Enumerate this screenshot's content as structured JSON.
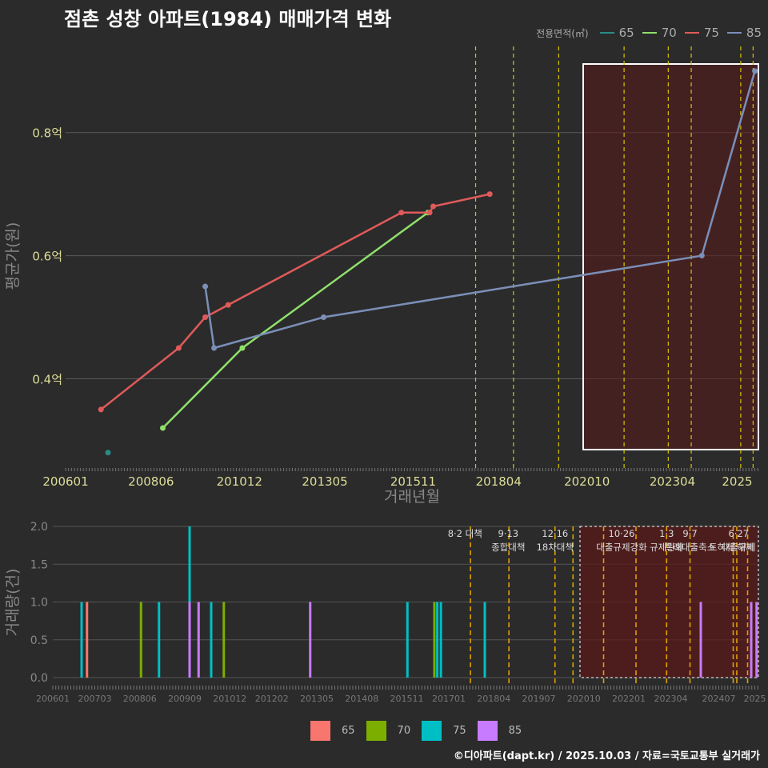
{
  "title": "점촌 성창 아파트(1984) 매매가격 변화",
  "footer": "©디아파트(dapt.kr) / 2025.10.03 / 자료=국토교통부 실거래가",
  "legend_top": {
    "title": "전용면적(㎡)",
    "items": [
      {
        "label": "65",
        "color": "#2a8b86"
      },
      {
        "label": "70",
        "color": "#8fe06a"
      },
      {
        "label": "75",
        "color": "#e05a5a"
      },
      {
        "label": "85",
        "color": "#7b8fb8"
      }
    ]
  },
  "legend_bottom": {
    "items": [
      {
        "label": "65",
        "color": "#f8766d"
      },
      {
        "label": "70",
        "color": "#7cae00"
      },
      {
        "label": "75",
        "color": "#00bfc4"
      },
      {
        "label": "85",
        "color": "#c77cff"
      }
    ]
  },
  "chart_data": [
    {
      "type": "line",
      "title": "점촌 성창 아파트(1984) 매매가격 변화",
      "xlabel": "거래년월",
      "ylabel": "평균가(원)",
      "xlim": [
        2006.0,
        2025.6
      ],
      "ylim": [
        0.255,
        0.94
      ],
      "yticks": [
        {
          "v": 0.4,
          "label": "0.4억"
        },
        {
          "v": 0.6,
          "label": "0.6억"
        },
        {
          "v": 0.8,
          "label": "0.8억"
        }
      ],
      "xticks": [
        {
          "v": 2006.0,
          "label": "200601"
        },
        {
          "v": 2008.417,
          "label": "200806"
        },
        {
          "v": 2010.917,
          "label": "201012"
        },
        {
          "v": 2013.333,
          "label": "201305"
        },
        {
          "v": 2015.833,
          "label": "201511"
        },
        {
          "v": 2018.25,
          "label": "201804"
        },
        {
          "v": 2020.75,
          "label": "202010"
        },
        {
          "v": 2023.167,
          "label": "202304"
        },
        {
          "v": 2025.0,
          "label": "2025"
        }
      ],
      "series": [
        {
          "name": "65",
          "points": [
            [
              2007.2,
              0.28
            ]
          ]
        },
        {
          "name": "70",
          "points": [
            [
              2008.75,
              0.32
            ],
            [
              2011.0,
              0.45
            ],
            [
              2016.25,
              0.67
            ]
          ]
        },
        {
          "name": "75",
          "points": [
            [
              2007.0,
              0.35
            ],
            [
              2009.2,
              0.45
            ],
            [
              2009.95,
              0.5
            ],
            [
              2010.6,
              0.52
            ],
            [
              2015.5,
              0.67
            ],
            [
              2016.3,
              0.67
            ],
            [
              2016.4,
              0.68
            ],
            [
              2018.0,
              0.7
            ]
          ]
        },
        {
          "name": "85",
          "points": [
            [
              2009.95,
              0.55
            ],
            [
              2010.2,
              0.45
            ],
            [
              2013.3,
              0.5
            ],
            [
              2024.0,
              0.6
            ],
            [
              2025.5,
              0.9
            ]
          ]
        }
      ],
      "policy_lines": [
        2017.6,
        2018.67,
        2019.95,
        2021.8,
        2023.05,
        2023.7,
        2025.1,
        2025.45
      ],
      "highlight": {
        "from": 2020.8,
        "to": 2025.6
      }
    },
    {
      "type": "bar",
      "ylabel": "거래량(건)",
      "xlim": [
        2006.0,
        2025.6
      ],
      "ylim": [
        0,
        2.0
      ],
      "yticks": [
        {
          "v": 0.0,
          "label": "0.0"
        },
        {
          "v": 0.5,
          "label": "0.5"
        },
        {
          "v": 1.0,
          "label": "1.0"
        },
        {
          "v": 1.5,
          "label": "1.5"
        },
        {
          "v": 2.0,
          "label": "2.0"
        }
      ],
      "xticks": [
        {
          "v": 2006.0,
          "label": "200601"
        },
        {
          "v": 2007.167,
          "label": "200703"
        },
        {
          "v": 2008.417,
          "label": "200806"
        },
        {
          "v": 2009.667,
          "label": "200909"
        },
        {
          "v": 2010.917,
          "label": "201012"
        },
        {
          "v": 2012.083,
          "label": "201202"
        },
        {
          "v": 2013.333,
          "label": "201305"
        },
        {
          "v": 2014.583,
          "label": "201408"
        },
        {
          "v": 2015.833,
          "label": "201511"
        },
        {
          "v": 2017.0,
          "label": "201701"
        },
        {
          "v": 2018.25,
          "label": "201804"
        },
        {
          "v": 2019.5,
          "label": "201907"
        },
        {
          "v": 2020.75,
          "label": "202010"
        },
        {
          "v": 2022.0,
          "label": "202201"
        },
        {
          "v": 2023.167,
          "label": "202304"
        },
        {
          "v": 2024.5,
          "label": "202407"
        },
        {
          "v": 2025.5,
          "label": "2025"
        }
      ],
      "bars": [
        {
          "x": 2006.8,
          "series": "75",
          "value": 1
        },
        {
          "x": 2006.95,
          "series": "65",
          "value": 1
        },
        {
          "x": 2008.45,
          "series": "70",
          "value": 1
        },
        {
          "x": 2008.95,
          "series": "75",
          "value": 1
        },
        {
          "x": 2009.8,
          "series": "75",
          "value": 2
        },
        {
          "x": 2009.8,
          "series": "85",
          "value": 1
        },
        {
          "x": 2010.05,
          "series": "85",
          "value": 1
        },
        {
          "x": 2010.4,
          "series": "75",
          "value": 1
        },
        {
          "x": 2010.75,
          "series": "70",
          "value": 1
        },
        {
          "x": 2013.15,
          "series": "85",
          "value": 1
        },
        {
          "x": 2015.85,
          "series": "75",
          "value": 1
        },
        {
          "x": 2016.6,
          "series": "70",
          "value": 1
        },
        {
          "x": 2016.68,
          "series": "75",
          "value": 1
        },
        {
          "x": 2016.78,
          "series": "75",
          "value": 1
        },
        {
          "x": 2018.0,
          "series": "75",
          "value": 1
        },
        {
          "x": 2024.0,
          "series": "85",
          "value": 1
        },
        {
          "x": 2025.4,
          "series": "85",
          "value": 1
        },
        {
          "x": 2025.55,
          "series": "85",
          "value": 1
        }
      ],
      "policy_lines": [
        2017.6,
        2018.67,
        2019.95,
        2020.45,
        2021.3,
        2022.2,
        2023.05,
        2023.7,
        2024.9,
        2025.0,
        2025.3
      ],
      "highlight": {
        "from": 2020.8,
        "to": 2025.6
      },
      "annotations": [
        {
          "x": 2017.45,
          "lines": [
            "8·2 대책"
          ]
        },
        {
          "x": 2018.65,
          "lines": [
            "9·13",
            "종합대책"
          ]
        },
        {
          "x": 2019.95,
          "lines": [
            "12·16",
            "18차대책"
          ]
        },
        {
          "x": 2021.8,
          "lines": [
            "10·26",
            "대출규제강화"
          ]
        },
        {
          "x": 2023.05,
          "lines": [
            "1·3",
            "규제완화"
          ]
        },
        {
          "x": 2023.7,
          "lines": [
            "9·7",
            "특례대출축소"
          ]
        },
        {
          "x": 2025.05,
          "lines": [
            "6·27",
            "대출규제"
          ]
        },
        {
          "x": 2024.85,
          "lines": [
            "",
            "토허제 해제"
          ]
        }
      ]
    }
  ]
}
